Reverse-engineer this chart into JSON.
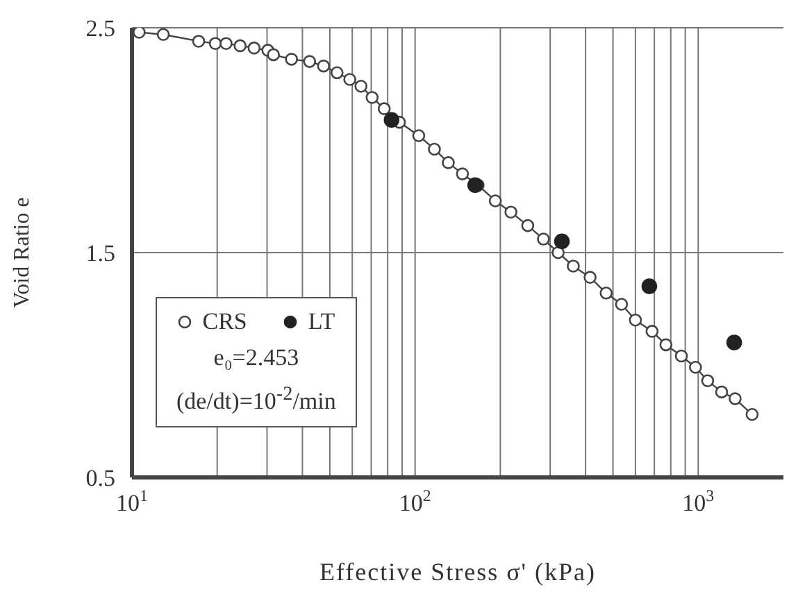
{
  "chart_data": {
    "type": "scatter",
    "xlabel": "Effective Stress σ' (kPa)",
    "ylabel": "Void Ratio e",
    "log": "x",
    "xlim": [
      10,
      2000
    ],
    "ylim": [
      0.5,
      2.5
    ],
    "xticks": [
      {
        "value": 10,
        "label": "10$^{1}$"
      },
      {
        "value": 20,
        "label": null
      },
      {
        "value": 30,
        "label": null
      },
      {
        "value": 40,
        "label": null
      },
      {
        "value": 50,
        "label": null
      },
      {
        "value": 60,
        "label": null
      },
      {
        "value": 70,
        "label": null
      },
      {
        "value": 80,
        "label": null
      },
      {
        "value": 90,
        "label": null
      },
      {
        "value": 100,
        "label": "10$^{2}$"
      },
      {
        "value": 200,
        "label": null
      },
      {
        "value": 300,
        "label": null
      },
      {
        "value": 400,
        "label": null
      },
      {
        "value": 500,
        "label": null
      },
      {
        "value": 600,
        "label": null
      },
      {
        "value": 700,
        "label": null
      },
      {
        "value": 800,
        "label": null
      },
      {
        "value": 900,
        "label": null
      },
      {
        "value": 1000,
        "label": "10$^{3}$"
      }
    ],
    "yticks": [
      0.5,
      1.5,
      2.5
    ],
    "grid": true,
    "legend": "bottom left",
    "marker": "circle",
    "annotations": [
      "e₀=2.453",
      "(de/dt)=10$^{-2}$/min"
    ],
    "series": [
      {
        "name": "CRS",
        "type": "line",
        "line_style": "solid",
        "color": "#444444",
        "x": [
          10.6,
          12.9,
          17.2,
          19.7,
          21.5,
          24.1,
          27,
          30.2,
          31.6,
          36.6,
          42.4,
          47.5,
          53,
          58.8,
          64.4,
          70.5,
          77.8,
          88,
          103,
          117,
          131,
          147,
          167,
          192,
          218,
          250,
          284,
          320,
          362,
          415,
          473,
          536,
          600,
          687,
          769,
          872,
          978,
          1080,
          1210,
          1350,
          1550
        ],
        "values": [
          2.48,
          2.47,
          2.44,
          2.43,
          2.43,
          2.42,
          2.41,
          2.4,
          2.38,
          2.36,
          2.35,
          2.33,
          2.3,
          2.27,
          2.24,
          2.19,
          2.14,
          2.08,
          2.02,
          1.96,
          1.9,
          1.85,
          1.8,
          1.73,
          1.68,
          1.62,
          1.56,
          1.5,
          1.44,
          1.39,
          1.32,
          1.27,
          1.2,
          1.15,
          1.09,
          1.04,
          0.99,
          0.93,
          0.88,
          0.85,
          0.78
        ]
      },
      {
        "name": "LT",
        "color": "#222222",
        "x": [
          82.6,
          163,
          330,
          672,
          1340
        ],
        "values": [
          2.09,
          1.8,
          1.55,
          1.35,
          1.1
        ]
      }
    ]
  }
}
